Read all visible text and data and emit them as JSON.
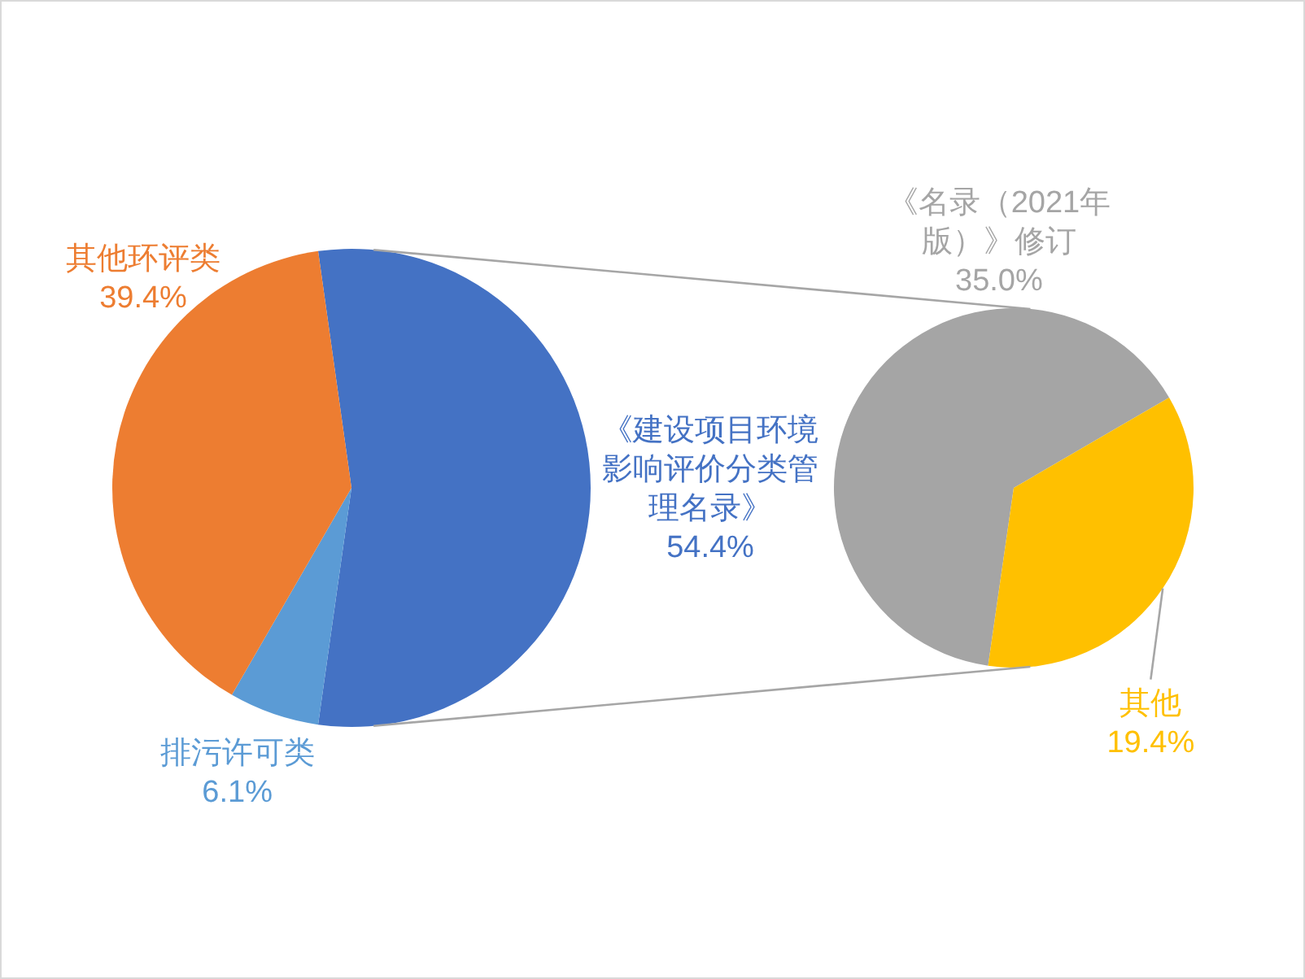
{
  "chart_data": [
    {
      "type": "pie",
      "categories": [
        "《建设项目环境影响评价分类管理名录》",
        "排污许可类",
        "其他环评类"
      ],
      "values": [
        54.4,
        6.1,
        39.4
      ],
      "colors": [
        "#4472c4",
        "#5b9bd5",
        "#ed7d31"
      ],
      "value_labels": [
        "54.4%",
        "6.1%",
        "39.4%"
      ]
    },
    {
      "type": "pie",
      "categories": [
        "《名录（2021年版）》修订",
        "其他"
      ],
      "values": [
        35.0,
        19.4
      ],
      "colors": [
        "#a5a5a5",
        "#ffc000"
      ],
      "value_labels": [
        "35.0%",
        "19.4%"
      ]
    }
  ]
}
